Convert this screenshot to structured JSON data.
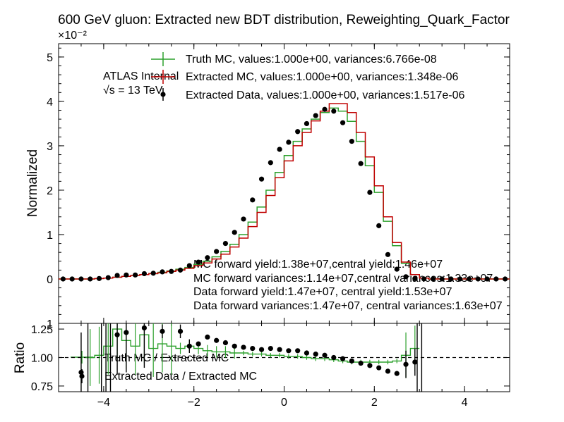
{
  "chart_data": {
    "type": "line",
    "title": "600 GeV gluon: Extracted new BDT distribution, Reweighting_Quark_Factor",
    "top_panel": {
      "ylabel": "Normalized",
      "scale_label": "×10⁻²",
      "ylim": [
        -1,
        5.3
      ],
      "yticks": [
        -1,
        0,
        1,
        2,
        3,
        4,
        5
      ],
      "ytick_labels": [
        "1",
        "0",
        "1",
        "2",
        "3",
        "4",
        "5"
      ]
    },
    "bottom_panel": {
      "ylabel": "Ratio",
      "ylim": [
        0.7,
        1.3
      ],
      "yticks": [
        0.75,
        1.0,
        1.25
      ],
      "ytick_labels": [
        "0.75",
        "1.00",
        "1.25"
      ]
    },
    "xlim": [
      -5,
      5
    ],
    "xticks": [
      -4,
      -2,
      0,
      2,
      4
    ],
    "xtick_labels": [
      "−4",
      "−2",
      "0",
      "2",
      "4"
    ],
    "atlas_label": "ATLAS Internal",
    "energy_label": "√s = 13 TeV",
    "legend": [
      "Truth MC, values:1.000e+00, variances:6.766e-08",
      "Extracted MC, values:1.000e+00, variances:1.348e-06",
      "Extracted Data, values:1.000e+00, variances:1.517e-06"
    ],
    "ratio_legend": [
      "Truth MC / Extracted MC",
      "Extracted Data / Extracted MC"
    ],
    "yield_annotations": [
      "MC forward yield:1.38e+07,central yield:1.46e+07",
      "MC forward variances:1.14e+07,central variances:1.33e+07",
      "Data forward yield:1.47e+07, central yield:1.53e+07",
      "Data forward variances:1.47e+07, central variances:1.63e+07"
    ],
    "series": [
      {
        "name": "Truth MC",
        "color": "#2ca02c",
        "x": [
          -5.0,
          -4.8,
          -4.6,
          -4.4,
          -4.2,
          -4.0,
          -3.8,
          -3.6,
          -3.4,
          -3.2,
          -3.0,
          -2.8,
          -2.6,
          -2.4,
          -2.2,
          -2.0,
          -1.8,
          -1.6,
          -1.4,
          -1.2,
          -1.0,
          -0.8,
          -0.6,
          -0.4,
          -0.2,
          0.0,
          0.2,
          0.4,
          0.6,
          0.8,
          1.0,
          1.2,
          1.4,
          1.6,
          1.8,
          2.0,
          2.2,
          2.4,
          2.6,
          2.8,
          3.0,
          3.2,
          3.4,
          3.6,
          3.8,
          4.0,
          4.2,
          4.4,
          4.6,
          4.8
        ],
        "values": [
          0.0,
          0.0,
          0.0,
          0.0,
          0.01,
          0.02,
          0.04,
          0.06,
          0.08,
          0.1,
          0.12,
          0.15,
          0.18,
          0.22,
          0.26,
          0.33,
          0.4,
          0.5,
          0.62,
          0.78,
          1.0,
          1.28,
          1.62,
          2.0,
          2.4,
          2.78,
          3.1,
          3.38,
          3.6,
          3.75,
          3.85,
          3.78,
          3.55,
          3.1,
          2.55,
          1.95,
          1.3,
          0.75,
          0.35,
          0.1,
          0.02,
          0.0,
          0.0,
          0.0,
          0.0,
          0.0,
          0.0,
          0.0,
          0.0,
          0.0
        ]
      },
      {
        "name": "Extracted MC",
        "color": "#c00000",
        "x": [
          -5.0,
          -4.8,
          -4.6,
          -4.4,
          -4.2,
          -4.0,
          -3.8,
          -3.6,
          -3.4,
          -3.2,
          -3.0,
          -2.8,
          -2.6,
          -2.4,
          -2.2,
          -2.0,
          -1.8,
          -1.6,
          -1.4,
          -1.2,
          -1.0,
          -0.8,
          -0.6,
          -0.4,
          -0.2,
          0.0,
          0.2,
          0.4,
          0.6,
          0.8,
          1.0,
          1.2,
          1.4,
          1.6,
          1.8,
          2.0,
          2.2,
          2.4,
          2.6,
          2.8,
          3.0,
          3.2,
          3.4,
          3.6,
          3.8,
          4.0,
          4.2,
          4.4,
          4.6,
          4.8
        ],
        "values": [
          0.0,
          0.0,
          0.0,
          0.0,
          0.01,
          0.02,
          0.04,
          0.06,
          0.08,
          0.1,
          0.12,
          0.14,
          0.17,
          0.2,
          0.24,
          0.3,
          0.36,
          0.45,
          0.56,
          0.72,
          0.92,
          1.18,
          1.5,
          1.88,
          2.28,
          2.66,
          3.0,
          3.3,
          3.56,
          3.78,
          3.95,
          3.95,
          3.75,
          3.3,
          2.75,
          2.1,
          1.4,
          0.82,
          0.38,
          0.1,
          0.02,
          0.0,
          0.0,
          0.0,
          0.0,
          0.0,
          0.0,
          0.0,
          0.0,
          0.0
        ]
      },
      {
        "name": "Extracted Data",
        "color": "#000000",
        "x": [
          -4.9,
          -4.7,
          -4.5,
          -4.3,
          -4.1,
          -3.9,
          -3.7,
          -3.5,
          -3.3,
          -3.1,
          -2.9,
          -2.7,
          -2.5,
          -2.3,
          -2.1,
          -1.9,
          -1.7,
          -1.5,
          -1.3,
          -1.1,
          -0.9,
          -0.7,
          -0.5,
          -0.3,
          -0.1,
          0.1,
          0.3,
          0.5,
          0.7,
          0.9,
          1.1,
          1.3,
          1.5,
          1.7,
          1.9,
          2.1,
          2.3,
          2.5,
          2.7,
          2.9,
          3.1,
          3.3,
          3.5,
          3.7,
          3.9,
          4.1,
          4.3,
          4.5,
          4.7,
          4.9
        ],
        "values": [
          0.0,
          0.0,
          0.0,
          0.0,
          0.01,
          0.03,
          0.08,
          0.09,
          0.09,
          0.12,
          0.13,
          0.16,
          0.17,
          0.2,
          0.3,
          0.38,
          0.48,
          0.62,
          0.8,
          1.05,
          1.35,
          1.78,
          2.25,
          2.62,
          2.92,
          3.08,
          3.32,
          3.5,
          3.68,
          3.82,
          3.78,
          3.52,
          3.1,
          2.6,
          1.95,
          1.2,
          0.55,
          0.22,
          0.05,
          0.01,
          0.0,
          0.0,
          0.0,
          0.0,
          0.0,
          0.0,
          0.0,
          0.0,
          0.0,
          0.0
        ]
      }
    ],
    "ratio_series": [
      {
        "name": "Truth MC / Extracted MC",
        "color": "#2ca02c",
        "x": [
          -4.4,
          -4.2,
          -4.0,
          -3.8,
          -3.6,
          -3.4,
          -3.2,
          -3.0,
          -2.8,
          -2.6,
          -2.4,
          -2.2,
          -2.0,
          -1.8,
          -1.6,
          -1.4,
          -1.2,
          -1.0,
          -0.8,
          -0.6,
          -0.4,
          -0.2,
          0.0,
          0.2,
          0.4,
          0.6,
          0.8,
          1.0,
          1.2,
          1.4,
          1.6,
          1.8,
          2.0,
          2.2,
          2.4,
          2.6,
          2.8
        ],
        "values": [
          1.0,
          1.02,
          1.1,
          1.25,
          1.15,
          1.1,
          1.2,
          1.08,
          1.12,
          1.1,
          1.08,
          1.1,
          1.08,
          1.06,
          1.05,
          1.05,
          1.04,
          1.04,
          1.03,
          1.03,
          1.02,
          1.02,
          1.01,
          1.01,
          1.0,
          0.99,
          0.99,
          0.98,
          0.97,
          0.96,
          0.96,
          0.96,
          0.96,
          0.96,
          0.97,
          1.02,
          1.08
        ]
      },
      {
        "name": "Extracted Data / Extracted MC",
        "color": "#000000",
        "x": [
          -4.5,
          -3.7,
          -3.5,
          -3.1,
          -2.7,
          -2.3,
          -2.1,
          -1.9,
          -1.7,
          -1.5,
          -1.3,
          -1.1,
          -0.9,
          -0.7,
          -0.5,
          -0.3,
          -0.1,
          0.1,
          0.3,
          0.5,
          0.7,
          0.9,
          1.1,
          1.3,
          1.5,
          1.7,
          1.9,
          2.1,
          2.3,
          2.5,
          2.7,
          2.9
        ],
        "values": [
          0.87,
          1.2,
          1.22,
          1.26,
          1.23,
          1.23,
          1.1,
          1.12,
          1.18,
          1.15,
          1.13,
          1.1,
          1.09,
          1.08,
          1.07,
          1.08,
          1.07,
          1.06,
          1.06,
          1.04,
          1.03,
          1.02,
          1.0,
          0.99,
          0.97,
          0.95,
          0.93,
          0.91,
          0.88,
          0.86,
          0.94,
          0.96
        ]
      }
    ]
  }
}
